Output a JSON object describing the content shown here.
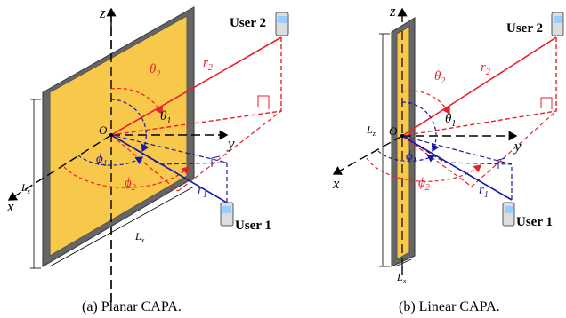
{
  "panel_a": {
    "caption": "(a) Planar CAPA.",
    "labels": {
      "z": "z",
      "y": "y",
      "x": "x",
      "O": "O",
      "Lz": "L",
      "Lz_sub": "z",
      "Lx": "L",
      "Lx_sub": "x",
      "r1": "r",
      "r1_sub": "1",
      "r2": "r",
      "r2_sub": "2",
      "theta1": "θ",
      "theta1_sub": "1",
      "theta2": "θ",
      "theta2_sub": "2",
      "phi1": "ϕ",
      "phi1_sub": "1",
      "phi2": "ϕ",
      "phi2_sub": "2"
    },
    "user1": "User 1",
    "user2": "User 2"
  },
  "panel_b": {
    "caption": "(b) Linear CAPA.",
    "labels": {
      "z": "z",
      "y": "y",
      "x": "x",
      "O": "O",
      "Lz": "L",
      "Lz_sub": "z",
      "Lx": "L",
      "Lx_sub": "x",
      "r1": "r",
      "r1_sub": "1",
      "r2": "r",
      "r2_sub": "2",
      "theta1": "θ",
      "theta1_sub": "1",
      "theta2": "θ",
      "theta2_sub": "2",
      "phi1": "ϕ",
      "phi1_sub": "1",
      "phi2": "ϕ",
      "phi2_sub": "2"
    },
    "user1": "User 1",
    "user2": "User 2"
  },
  "colors": {
    "panel_fill": "#f7c84a",
    "frame": "#555555",
    "red": "#e8202a",
    "blue": "#1a1aa0"
  }
}
